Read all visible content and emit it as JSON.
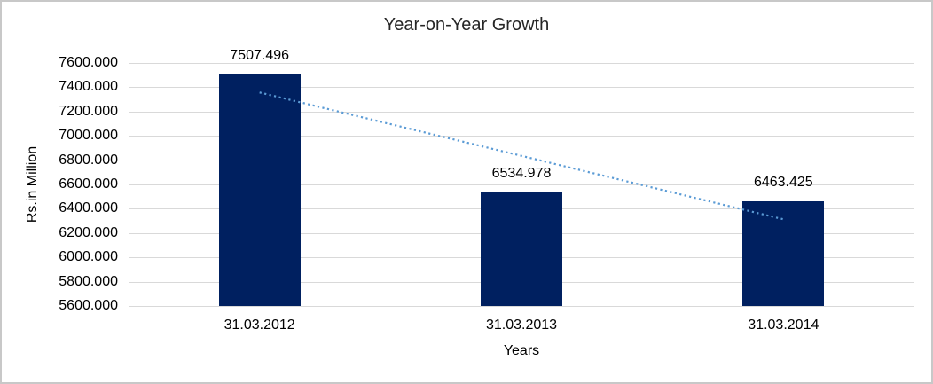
{
  "frame": {
    "border_color": "#c8c8c8",
    "background": "#ffffff"
  },
  "chart_data": {
    "type": "bar",
    "title": "Year-on-Year Growth",
    "xlabel": "Years",
    "ylabel": "Rs.in Million",
    "categories": [
      "31.03.2012",
      "31.03.2013",
      "31.03.2014"
    ],
    "values": [
      7507.496,
      6534.978,
      6463.425
    ],
    "data_labels": [
      "7507.496",
      "6534.978",
      "6463.425"
    ],
    "ylim": [
      5600,
      7600
    ],
    "ytick_step": 200,
    "ytick_labels_top_to_bottom": [
      "7600.000",
      "7400.000",
      "7200.000",
      "7000.000",
      "6800.000",
      "6600.000",
      "6400.000",
      "6200.000",
      "6000.000",
      "5800.000",
      "5600.000"
    ],
    "grid": true,
    "legend": "none",
    "bar_color": "#002060",
    "gridline_color": "#d9d9d9",
    "trendline": {
      "type": "linear",
      "style": "dotted",
      "color": "#5b9bd5"
    }
  }
}
